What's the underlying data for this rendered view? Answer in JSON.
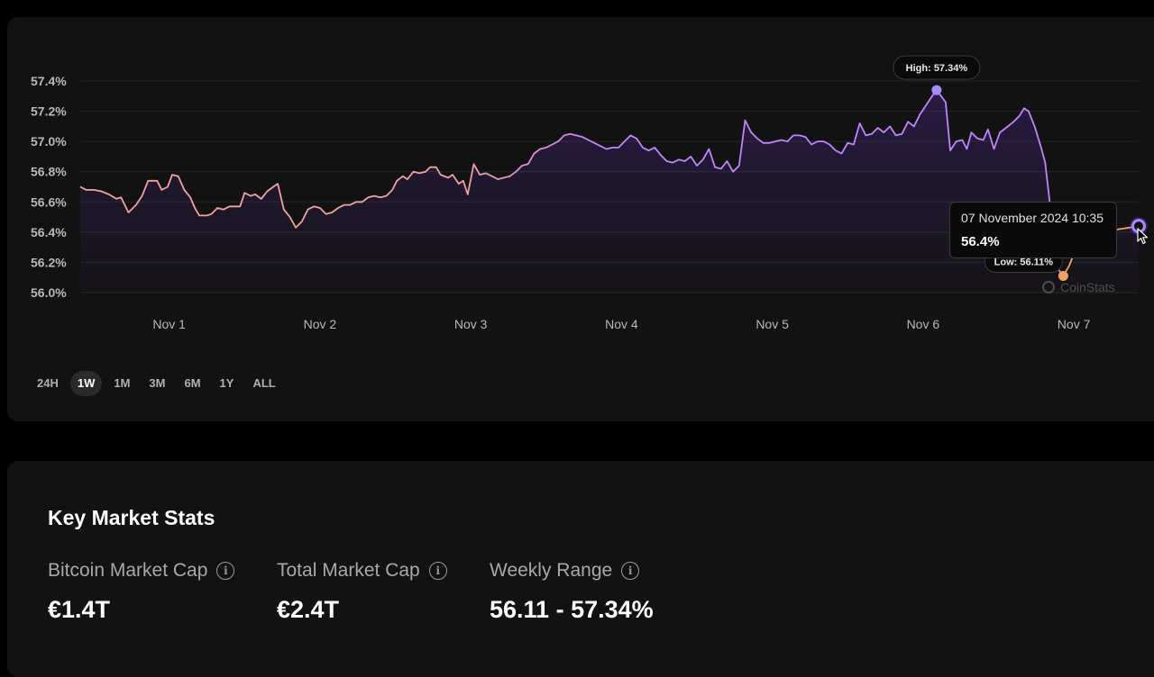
{
  "chart_data": {
    "type": "line",
    "y_ticks": [
      "57.4%",
      "57.2%",
      "57.0%",
      "56.8%",
      "56.6%",
      "56.4%",
      "56.2%",
      "56.0%"
    ],
    "ylim": [
      56.0,
      57.4
    ],
    "x_ticks": [
      "Nov 1",
      "Nov 2",
      "Nov 3",
      "Nov 4",
      "Nov 5",
      "Nov 6",
      "Nov 7"
    ],
    "x_tick_days": [
      1,
      2,
      3,
      4,
      5,
      6,
      7
    ],
    "x_range_days": [
      0.41,
      7.43
    ],
    "grid": true,
    "series": [
      {
        "values": [
          [
            0.41,
            56.7
          ],
          [
            0.45,
            56.68
          ],
          [
            0.5,
            56.68
          ],
          [
            0.55,
            56.67
          ],
          [
            0.6,
            56.65
          ],
          [
            0.65,
            56.62
          ],
          [
            0.68,
            56.63
          ],
          [
            0.73,
            56.53
          ],
          [
            0.78,
            56.58
          ],
          [
            0.82,
            56.64
          ],
          [
            0.86,
            56.74
          ],
          [
            0.92,
            56.74
          ],
          [
            0.95,
            56.68
          ],
          [
            0.99,
            56.7
          ],
          [
            1.02,
            56.78
          ],
          [
            1.06,
            56.77
          ],
          [
            1.1,
            56.68
          ],
          [
            1.14,
            56.63
          ],
          [
            1.17,
            56.56
          ],
          [
            1.2,
            56.51
          ],
          [
            1.25,
            56.51
          ],
          [
            1.28,
            56.52
          ],
          [
            1.32,
            56.56
          ],
          [
            1.36,
            56.55
          ],
          [
            1.4,
            56.57
          ],
          [
            1.44,
            56.57
          ],
          [
            1.47,
            56.57
          ],
          [
            1.5,
            56.66
          ],
          [
            1.54,
            56.64
          ],
          [
            1.57,
            56.65
          ],
          [
            1.61,
            56.62
          ],
          [
            1.65,
            56.67
          ],
          [
            1.69,
            56.7
          ],
          [
            1.72,
            56.72
          ],
          [
            1.76,
            56.55
          ],
          [
            1.8,
            56.5
          ],
          [
            1.84,
            56.43
          ],
          [
            1.88,
            56.47
          ],
          [
            1.92,
            56.55
          ],
          [
            1.96,
            56.57
          ],
          [
            2.0,
            56.56
          ],
          [
            2.04,
            56.52
          ],
          [
            2.08,
            56.53
          ],
          [
            2.12,
            56.56
          ],
          [
            2.16,
            56.58
          ],
          [
            2.2,
            56.58
          ],
          [
            2.24,
            56.6
          ],
          [
            2.28,
            56.6
          ],
          [
            2.32,
            56.63
          ],
          [
            2.36,
            56.64
          ],
          [
            2.4,
            56.63
          ],
          [
            2.44,
            56.64
          ],
          [
            2.48,
            56.68
          ],
          [
            2.51,
            56.74
          ],
          [
            2.55,
            56.77
          ],
          [
            2.58,
            56.75
          ],
          [
            2.62,
            56.8
          ],
          [
            2.66,
            56.79
          ],
          [
            2.7,
            56.8
          ],
          [
            2.73,
            56.83
          ],
          [
            2.77,
            56.83
          ],
          [
            2.8,
            56.78
          ],
          [
            2.85,
            56.76
          ],
          [
            2.88,
            56.78
          ],
          [
            2.92,
            56.72
          ],
          [
            2.95,
            56.74
          ],
          [
            2.98,
            56.65
          ],
          [
            3.02,
            56.85
          ],
          [
            3.06,
            56.78
          ],
          [
            3.1,
            56.79
          ],
          [
            3.14,
            56.77
          ],
          [
            3.18,
            56.75
          ],
          [
            3.22,
            56.76
          ],
          [
            3.26,
            56.77
          ],
          [
            3.3,
            56.8
          ],
          [
            3.34,
            56.84
          ],
          [
            3.38,
            56.85
          ],
          [
            3.42,
            56.92
          ],
          [
            3.46,
            56.95
          ],
          [
            3.5,
            56.96
          ],
          [
            3.54,
            56.98
          ],
          [
            3.58,
            57.0
          ],
          [
            3.62,
            57.04
          ],
          [
            3.66,
            57.05
          ],
          [
            3.7,
            57.04
          ],
          [
            3.74,
            57.03
          ],
          [
            3.78,
            57.01
          ],
          [
            3.82,
            56.99
          ],
          [
            3.86,
            56.97
          ],
          [
            3.9,
            56.95
          ],
          [
            3.94,
            56.96
          ],
          [
            3.98,
            56.96
          ],
          [
            4.02,
            57.0
          ],
          [
            4.06,
            57.04
          ],
          [
            4.1,
            57.02
          ],
          [
            4.14,
            56.96
          ],
          [
            4.18,
            56.94
          ],
          [
            4.22,
            56.96
          ],
          [
            4.26,
            56.91
          ],
          [
            4.3,
            56.87
          ],
          [
            4.34,
            56.86
          ],
          [
            4.38,
            56.88
          ],
          [
            4.42,
            56.87
          ],
          [
            4.46,
            56.9
          ],
          [
            4.5,
            56.84
          ],
          [
            4.54,
            56.88
          ],
          [
            4.58,
            56.95
          ],
          [
            4.62,
            56.83
          ],
          [
            4.66,
            56.82
          ],
          [
            4.7,
            56.87
          ],
          [
            4.74,
            56.8
          ],
          [
            4.78,
            56.84
          ],
          [
            4.82,
            57.14
          ],
          [
            4.86,
            57.06
          ],
          [
            4.9,
            57.02
          ],
          [
            4.94,
            56.99
          ],
          [
            4.98,
            56.99
          ],
          [
            5.02,
            57.0
          ],
          [
            5.06,
            57.01
          ],
          [
            5.1,
            57.0
          ],
          [
            5.14,
            57.04
          ],
          [
            5.18,
            57.04
          ],
          [
            5.22,
            57.03
          ],
          [
            5.26,
            56.98
          ],
          [
            5.3,
            57.0
          ],
          [
            5.34,
            57.0
          ],
          [
            5.38,
            56.98
          ],
          [
            5.42,
            56.94
          ],
          [
            5.46,
            56.92
          ],
          [
            5.5,
            56.99
          ],
          [
            5.54,
            56.98
          ],
          [
            5.58,
            57.12
          ],
          [
            5.62,
            57.04
          ],
          [
            5.66,
            57.05
          ],
          [
            5.7,
            57.09
          ],
          [
            5.74,
            57.06
          ],
          [
            5.78,
            57.1
          ],
          [
            5.82,
            57.04
          ],
          [
            5.86,
            57.05
          ],
          [
            5.9,
            57.13
          ],
          [
            5.94,
            57.1
          ],
          [
            5.98,
            57.18
          ],
          [
            6.02,
            57.24
          ],
          [
            6.06,
            57.3
          ],
          [
            6.09,
            57.34
          ],
          [
            6.12,
            57.3
          ],
          [
            6.15,
            57.26
          ],
          [
            6.18,
            56.94
          ],
          [
            6.22,
            57.0
          ],
          [
            6.26,
            57.01
          ],
          [
            6.29,
            56.95
          ],
          [
            6.32,
            57.06
          ],
          [
            6.36,
            57.02
          ],
          [
            6.4,
            57.01
          ],
          [
            6.43,
            57.08
          ],
          [
            6.47,
            56.95
          ],
          [
            6.51,
            57.06
          ],
          [
            6.55,
            57.09
          ],
          [
            6.6,
            57.13
          ],
          [
            6.64,
            57.17
          ],
          [
            6.67,
            57.22
          ],
          [
            6.7,
            57.2
          ],
          [
            6.74,
            57.1
          ],
          [
            6.78,
            56.97
          ],
          [
            6.81,
            56.86
          ],
          [
            6.84,
            56.6
          ],
          [
            6.86,
            56.25
          ],
          [
            6.9,
            56.15
          ],
          [
            6.93,
            56.11
          ],
          [
            6.97,
            56.18
          ],
          [
            7.01,
            56.28
          ],
          [
            7.04,
            56.36
          ],
          [
            7.08,
            56.4
          ],
          [
            7.12,
            56.42
          ],
          [
            7.16,
            56.43
          ],
          [
            7.2,
            56.42
          ],
          [
            7.25,
            56.41
          ],
          [
            7.3,
            56.42
          ],
          [
            7.37,
            56.43
          ],
          [
            7.43,
            56.44
          ]
        ]
      }
    ],
    "line_colors": {
      "up": "#c084fc",
      "down": "#f2a0a0",
      "low": "#f4a261"
    },
    "high": {
      "label": "High: 57.34%",
      "x": 6.09,
      "y": 57.34
    },
    "low": {
      "label": "Low: 56.11%",
      "x": 6.93,
      "y": 56.11
    },
    "hover": {
      "x": 7.43,
      "y": 56.44
    }
  },
  "tooltip": {
    "date": "07 November 2024 10:35",
    "value": "56.4%"
  },
  "watermark": "CoinStats",
  "ranges": [
    {
      "label": "24H",
      "active": false
    },
    {
      "label": "1W",
      "active": true
    },
    {
      "label": "1M",
      "active": false
    },
    {
      "label": "3M",
      "active": false
    },
    {
      "label": "6M",
      "active": false
    },
    {
      "label": "1Y",
      "active": false
    },
    {
      "label": "ALL",
      "active": false
    }
  ],
  "stats": {
    "title": "Key Market Stats",
    "items": [
      {
        "label": "Bitcoin Market Cap",
        "value": "€1.4T",
        "icon": "info-icon"
      },
      {
        "label": "Total Market Cap",
        "value": "€2.4T",
        "icon": "info-icon"
      },
      {
        "label": "Weekly Range",
        "value": "56.11 - 57.34%",
        "icon": "info-icon"
      }
    ]
  }
}
